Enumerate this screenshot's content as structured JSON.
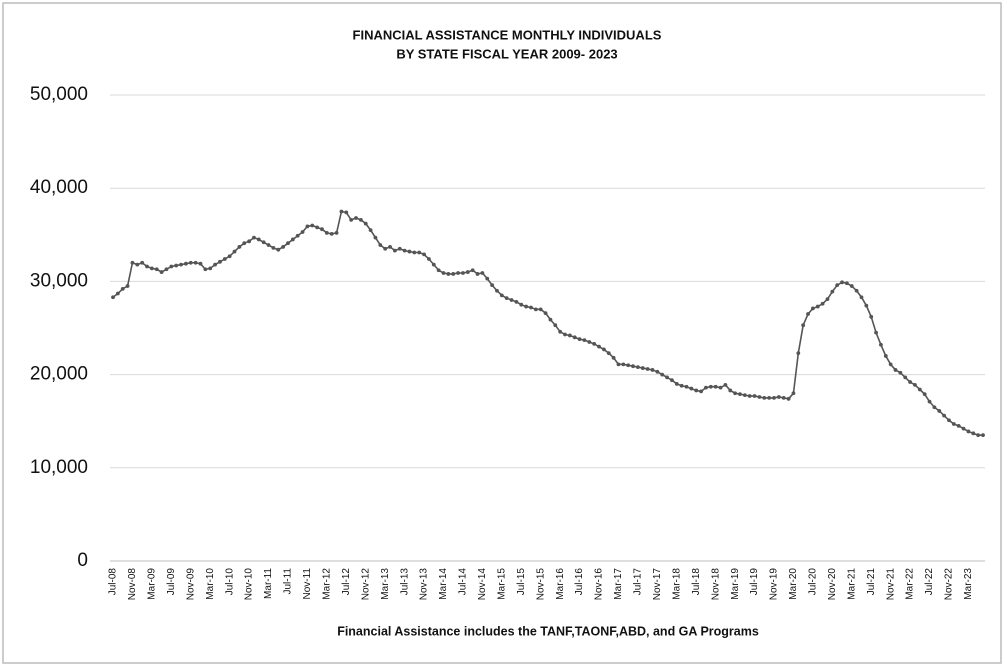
{
  "chart_data": {
    "type": "line",
    "title": [
      "FINANCIAL ASSISTANCE MONTHLY INDIVIDUALS",
      "BY STATE FISCAL YEAR 2009- 2023"
    ],
    "x_label": "Financial Assistance includes the TANF,TAONF,ABD, and GA Programs",
    "categories": [
      "Jul-08",
      null,
      null,
      null,
      "Nov-08",
      null,
      null,
      null,
      "Mar-09",
      null,
      null,
      null,
      "Jul-09",
      null,
      null,
      null,
      "Nov-09",
      null,
      null,
      null,
      "Mar-10",
      null,
      null,
      null,
      "Jul-10",
      null,
      null,
      null,
      "Nov-10",
      null,
      null,
      null,
      "Mar-11",
      null,
      null,
      null,
      "Jul-11",
      null,
      null,
      null,
      "Nov-11",
      null,
      null,
      null,
      "Mar-12",
      null,
      null,
      null,
      "Jul-12",
      null,
      null,
      null,
      "Nov-12",
      null,
      null,
      null,
      "Mar-13",
      null,
      null,
      null,
      "Jul-13",
      null,
      null,
      null,
      "Nov-13",
      null,
      null,
      null,
      "Mar-14",
      null,
      null,
      null,
      "Jul-14",
      null,
      null,
      null,
      "Nov-14",
      null,
      null,
      null,
      "Mar-15",
      null,
      null,
      null,
      "Jul-15",
      null,
      null,
      null,
      "Nov-15",
      null,
      null,
      null,
      "Mar-16",
      null,
      null,
      null,
      "Jul-16",
      null,
      null,
      null,
      "Nov-16",
      null,
      null,
      null,
      "Mar-17",
      null,
      null,
      null,
      "Jul-17",
      null,
      null,
      null,
      "Nov-17",
      null,
      null,
      null,
      "Mar-18",
      null,
      null,
      null,
      "Jul-18",
      null,
      null,
      null,
      "Nov-18",
      null,
      null,
      null,
      "Mar-19",
      null,
      null,
      null,
      "Jul-19",
      null,
      null,
      null,
      "Nov-19",
      null,
      null,
      null,
      "Mar-20",
      null,
      null,
      null,
      "Jul-20",
      null,
      null,
      null,
      "Nov-20",
      null,
      null,
      null,
      "Mar-21",
      null,
      null,
      null,
      "Jul-21",
      null,
      null,
      null,
      "Nov-21",
      null,
      null,
      null,
      "Mar-22",
      null,
      null,
      null,
      "Jul-22",
      null,
      null,
      null,
      "Nov-22",
      null,
      null,
      null,
      "Mar-23",
      null,
      null,
      null
    ],
    "series": [
      {
        "color": "#555555",
        "values": [
          28300,
          28700,
          29200,
          29500,
          32000,
          31800,
          32000,
          31600,
          31400,
          31300,
          31000,
          31300,
          31600,
          31700,
          31800,
          31900,
          32000,
          32000,
          31900,
          31300,
          31400,
          31800,
          32100,
          32400,
          32700,
          33200,
          33700,
          34100,
          34300,
          34700,
          34500,
          34200,
          33900,
          33600,
          33400,
          33700,
          34100,
          34500,
          34900,
          35300,
          35900,
          36000,
          35800,
          35600,
          35200,
          35100,
          35200,
          37500,
          37400,
          36600,
          36800,
          36600,
          36200,
          35500,
          34700,
          33900,
          33500,
          33700,
          33300,
          33500,
          33300,
          33200,
          33100,
          33100,
          32900,
          32400,
          31800,
          31200,
          30900,
          30800,
          30800,
          30900,
          30900,
          31000,
          31200,
          30800,
          30900,
          30300,
          29600,
          29000,
          28500,
          28200,
          28000,
          27800,
          27500,
          27300,
          27200,
          27000,
          27000,
          26600,
          25900,
          25300,
          24600,
          24300,
          24200,
          24000,
          23800,
          23700,
          23500,
          23300,
          23000,
          22700,
          22300,
          21800,
          21100,
          21100,
          21000,
          20900,
          20800,
          20700,
          20600,
          20500,
          20300,
          20000,
          19700,
          19400,
          19000,
          18800,
          18700,
          18500,
          18300,
          18200,
          18600,
          18700,
          18700,
          18600,
          18900,
          18300,
          18000,
          17900,
          17800,
          17700,
          17700,
          17600,
          17500,
          17500,
          17500,
          17600,
          17500,
          17400,
          18000,
          22300,
          25300,
          26500,
          27100,
          27300,
          27600,
          28100,
          28900,
          29600,
          29900,
          29800,
          29500,
          29000,
          28300,
          27400,
          26200,
          24500,
          23200,
          22000,
          21100,
          20500,
          20200,
          19700,
          19200,
          18900,
          18400,
          17900,
          17100,
          16500,
          16100,
          15600,
          15100,
          14700,
          14500,
          14200,
          13900,
          13700,
          13500,
          13500
        ]
      }
    ],
    "ylim": [
      0,
      50000
    ],
    "yticks": [
      0,
      {
        "value": 10000,
        "label": "10,000"
      },
      {
        "value": 20000,
        "label": "20,000"
      },
      {
        "value": 30000,
        "label": "30,000"
      },
      {
        "value": 40000,
        "label": "40,000"
      },
      {
        "value": 50000,
        "label": "50,000"
      }
    ],
    "grid": true
  }
}
